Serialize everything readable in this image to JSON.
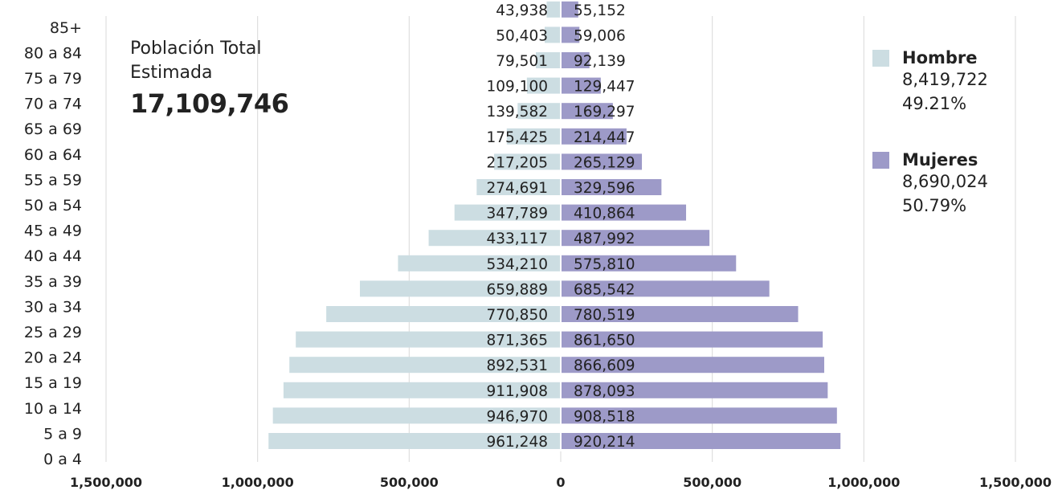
{
  "chart_data": {
    "type": "bar",
    "orientation": "horizontal-population-pyramid",
    "categories": [
      "0 a 4",
      "5 a 9",
      "10 a 14",
      "15 a 19",
      "20 a 24",
      "25 a 29",
      "30 a 34",
      "35 a 39",
      "40 a 44",
      "45 a 49",
      "50 a 54",
      "55 a 59",
      "60 a 64",
      "65 a 69",
      "70 a 74",
      "75 a 79",
      "80 a 84",
      "85+"
    ],
    "series": [
      {
        "name": "Hombre",
        "color": "#ccdde2",
        "direction": "left",
        "values": [
          961248,
          946970,
          911908,
          892531,
          871365,
          770850,
          659889,
          534210,
          433117,
          347789,
          274691,
          217205,
          175425,
          139582,
          109100,
          79501,
          50403,
          43938
        ],
        "labels": [
          "961,248",
          "946,970",
          "911,908",
          "892,531",
          "871,365",
          "770,850",
          "659,889",
          "534,210",
          "433,117",
          "347,789",
          "274,691",
          "217,205",
          "175,425",
          "139,582",
          "109,100",
          "79,501",
          "50,403",
          "43,938"
        ]
      },
      {
        "name": "Mujeres",
        "color": "#9d9ac8",
        "direction": "right",
        "values": [
          920214,
          908518,
          878093,
          866609,
          861650,
          780519,
          685542,
          575810,
          487992,
          410864,
          329596,
          265129,
          214447,
          169297,
          129447,
          92139,
          59006,
          55152
        ],
        "labels": [
          "920,214",
          "908,518",
          "878,093",
          "866,609",
          "861,650",
          "780,519",
          "685,542",
          "575,810",
          "487,992",
          "410,864",
          "329,596",
          "265,129",
          "214,447",
          "169,297",
          "129,447",
          "92,139",
          "59,006",
          "55,152"
        ]
      }
    ],
    "xlim": [
      -1500000,
      1500000
    ],
    "x_ticks": [
      -1500000,
      -1000000,
      -500000,
      0,
      500000,
      1000000,
      1500000
    ],
    "x_tick_labels": [
      "1,500,000",
      "1,000,000",
      "500,000",
      "0",
      "500,000",
      "1,000,000",
      "1,500,000"
    ],
    "grid": true,
    "legend_position": "right"
  },
  "info": {
    "title": "Población Total Estimada",
    "total": "17,109,746"
  },
  "legend": [
    {
      "name": "Hombre",
      "color": "#ccdde2",
      "count": "8,419,722",
      "percent": "49.21%"
    },
    {
      "name": "Mujeres",
      "color": "#9d9ac8",
      "count": "8,690,024",
      "percent": "50.79%"
    }
  ]
}
